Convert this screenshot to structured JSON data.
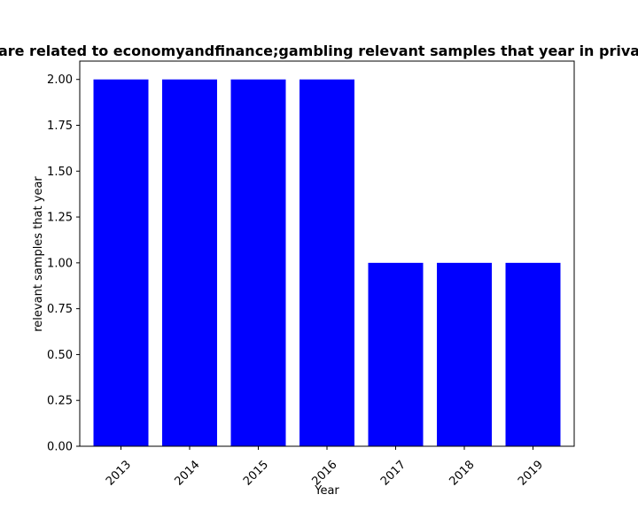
{
  "chart_data": {
    "type": "bar",
    "title": "are related to economyandfinance;gambling relevant samples that year in priva",
    "xlabel": "Year",
    "ylabel": "relevant samples that year",
    "categories": [
      "2013",
      "2014",
      "2015",
      "2016",
      "2017",
      "2018",
      "2019"
    ],
    "values": [
      2,
      2,
      2,
      2,
      1,
      1,
      1
    ],
    "ylim": [
      0,
      2.1
    ],
    "yticks": [
      "0.00",
      "0.25",
      "0.50",
      "0.75",
      "1.00",
      "1.25",
      "1.50",
      "1.75",
      "2.00"
    ],
    "bar_color": "#0000ff",
    "grid": false,
    "legend": "none"
  }
}
